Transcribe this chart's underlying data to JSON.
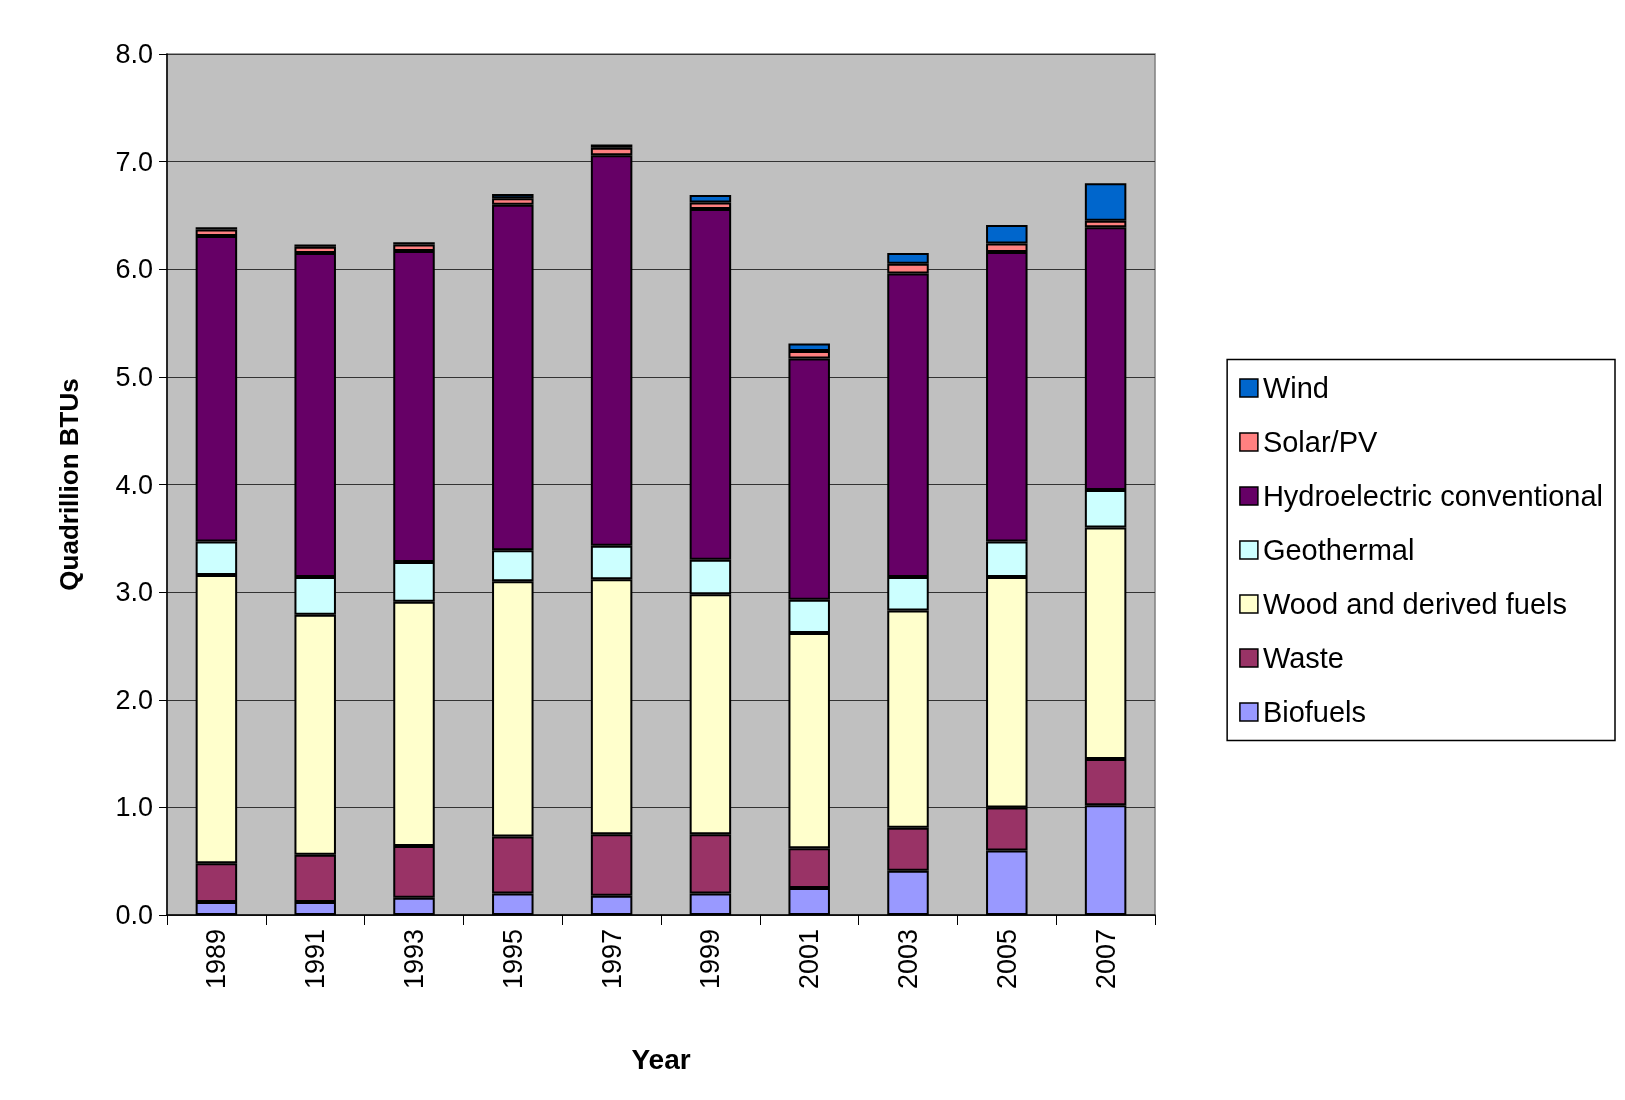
{
  "chart_data": {
    "type": "bar",
    "stacked": true,
    "xlabel": "Year",
    "ylabel": "Quadrillion BTUs",
    "categories": [
      "1989",
      "1991",
      "1993",
      "1995",
      "1997",
      "1999",
      "2001",
      "2003",
      "2005",
      "2007"
    ],
    "series": [
      {
        "name": "Biofuels",
        "color": "#9999ff",
        "values": [
          0.12,
          0.12,
          0.16,
          0.2,
          0.18,
          0.2,
          0.25,
          0.41,
          0.6,
          1.02
        ]
      },
      {
        "name": "Waste",
        "color": "#993366",
        "values": [
          0.36,
          0.44,
          0.48,
          0.53,
          0.57,
          0.55,
          0.37,
          0.4,
          0.4,
          0.43
        ]
      },
      {
        "name": "Wood and derived fuels",
        "color": "#ffffcc",
        "values": [
          2.68,
          2.23,
          2.27,
          2.37,
          2.37,
          2.23,
          2.0,
          2.02,
          2.14,
          2.15
        ]
      },
      {
        "name": "Geothermal",
        "color": "#ccffff",
        "values": [
          0.31,
          0.35,
          0.37,
          0.29,
          0.31,
          0.32,
          0.31,
          0.31,
          0.33,
          0.35
        ]
      },
      {
        "name": "Hydroelectric conventional",
        "color": "#660066",
        "values": [
          2.84,
          3.01,
          2.89,
          3.21,
          3.63,
          3.26,
          2.24,
          2.82,
          2.69,
          2.44
        ]
      },
      {
        "name": "Solar/PV",
        "color": "#ff8080",
        "values": [
          0.06,
          0.06,
          0.06,
          0.06,
          0.07,
          0.06,
          0.07,
          0.09,
          0.08,
          0.06
        ]
      },
      {
        "name": "Wind",
        "color": "#0066cc",
        "values": [
          0.02,
          0.02,
          0.02,
          0.04,
          0.03,
          0.07,
          0.07,
          0.1,
          0.17,
          0.35
        ]
      }
    ],
    "ylim": [
      0,
      8
    ],
    "yticks": [
      {
        "value": 0,
        "label": "0.0"
      },
      {
        "value": 1,
        "label": "1.0"
      },
      {
        "value": 2,
        "label": "2.0"
      },
      {
        "value": 3,
        "label": "3.0"
      },
      {
        "value": 4,
        "label": "4.0"
      },
      {
        "value": 5,
        "label": "5.0"
      },
      {
        "value": 6,
        "label": "6.0"
      },
      {
        "value": 7,
        "label": "7.0"
      },
      {
        "value": 8,
        "label": "8.0"
      }
    ],
    "grid": "y",
    "legend": "right"
  }
}
